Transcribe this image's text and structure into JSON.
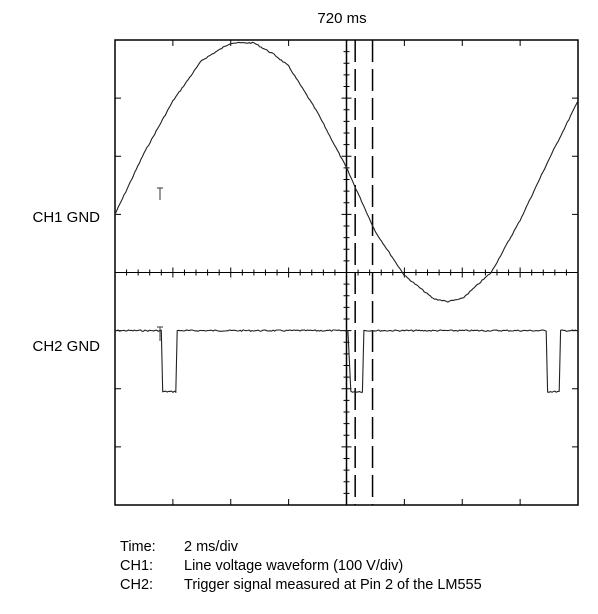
{
  "chart_data": {
    "type": "line",
    "title": "",
    "cursor_label": "720 ms",
    "channel_labels": [
      "CH1 GND",
      "CH2 GND"
    ],
    "grid": {
      "divisions_x": 8,
      "divisions_y": 8,
      "minor_ticks_per_division": 5
    },
    "xlim_ms": [
      0,
      16
    ],
    "ylim_div": [
      -4,
      4
    ],
    "cursors_ms": [
      8.0,
      8.3,
      8.9
    ],
    "series": [
      {
        "channel": "CH1",
        "ground_div": 1,
        "x_ms": [
          0,
          1,
          2,
          3,
          4,
          4.8,
          5.5,
          6,
          7,
          8,
          9,
          10,
          11,
          11.5,
          12,
          13,
          14,
          15,
          16
        ],
        "y_div": [
          0,
          1.05,
          1.95,
          2.65,
          2.95,
          2.95,
          2.75,
          2.55,
          1.75,
          0.8,
          -0.3,
          -1.05,
          -1.45,
          -1.5,
          -1.45,
          -1.0,
          -0.1,
          0.95,
          1.95
        ]
      },
      {
        "channel": "CH2",
        "ground_div": -1,
        "x_ms": [
          -0.2,
          1.6,
          1.65,
          2.1,
          2.15,
          8.05,
          8.15,
          8.55,
          8.6,
          14.9,
          14.95,
          15.35,
          15.4,
          16
        ],
        "y_div": [
          0,
          0,
          -1.05,
          -1.05,
          0,
          0,
          -1.05,
          -1.05,
          0,
          0,
          -1.05,
          -1.05,
          0,
          0
        ]
      }
    ]
  },
  "caption": [
    {
      "key": "Time:",
      "value": "2 ms/div"
    },
    {
      "key": "CH1:",
      "value": "Line voltage waveform (100 V/div)"
    },
    {
      "key": "CH2:",
      "value": "Trigger signal measured at Pin 2 of the LM555"
    }
  ]
}
